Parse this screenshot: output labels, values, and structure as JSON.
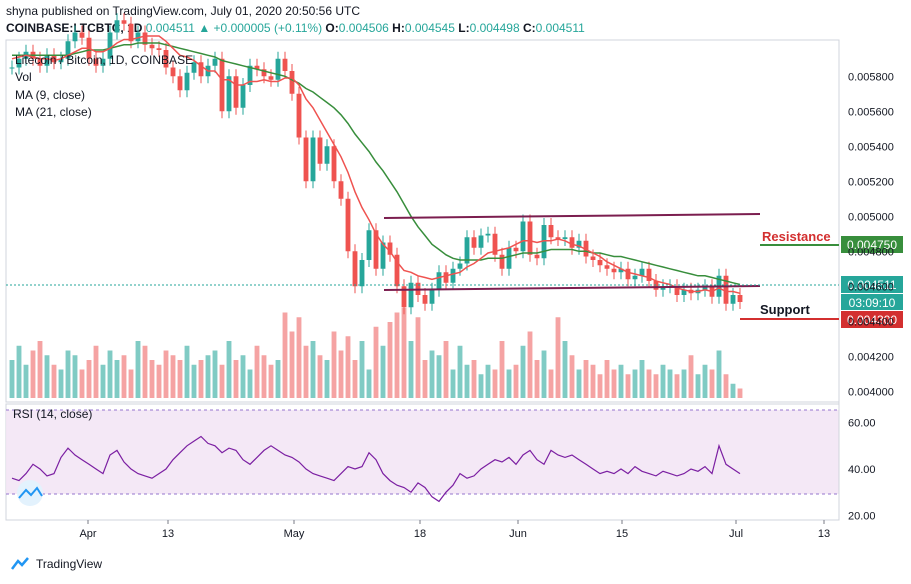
{
  "header": {
    "publisher": "shyna published on TradingView.com, July 01, 2020 20:50:56 UTC",
    "symbol": "COINBASE:LTCBTC, 1D",
    "last": "0.004511",
    "change_arrow": "▲",
    "change": "+0.000005 (+0.11%)",
    "o_label": "O:",
    "o": "0.004506",
    "h_label": "H:",
    "h": "0.004545",
    "l_label": "L:",
    "l": "0.004498",
    "c_label": "C:",
    "c": "0.004511"
  },
  "legend": {
    "title": "Litecoin / Bitcoin, 1D, COINBASE",
    "vol": "Vol",
    "ma9": "MA (9, close)",
    "ma21": "MA (21, close)",
    "rsi": "RSI (14, close)"
  },
  "annotations": {
    "resistance": "Resistance",
    "support": "Support"
  },
  "price_tags": {
    "resistance": "0.004750",
    "current": "0.004511",
    "countdown": "03:09:10",
    "support": "0.004300"
  },
  "footer": {
    "brand": "TradingView"
  },
  "colors": {
    "up": "#26a69a",
    "down": "#ef5350",
    "ma9": "#ef5350",
    "ma21": "#388e3c",
    "channel": "#7b1e4f",
    "resistance": "#388e3c",
    "support": "#d32f2f",
    "rsi": "#7b1fa2"
  },
  "chart_data": {
    "type": "candlestick",
    "price_axis": {
      "ticks": [
        "0.005800",
        "0.005600",
        "0.005400",
        "0.005200",
        "0.005000",
        "0.004800",
        "0.004600",
        "0.004400",
        "0.004200",
        "0.004000"
      ],
      "range": [
        0.00395,
        0.00595
      ]
    },
    "time_axis": {
      "ticks": [
        "Apr",
        "13",
        "May",
        "18",
        "Jun",
        "15",
        "Jul",
        "13"
      ]
    },
    "rsi_axis": {
      "ticks": [
        "60.00",
        "40.00",
        "20.00"
      ],
      "range": [
        18,
        68
      ],
      "band": [
        30,
        70
      ]
    },
    "close": [
      0.00585,
      0.0059,
      0.00594,
      0.0059,
      0.00586,
      0.00592,
      0.00588,
      0.0059,
      0.006,
      0.00605,
      0.00602,
      0.0059,
      0.00586,
      0.0059,
      0.00605,
      0.00612,
      0.0061,
      0.006,
      0.00605,
      0.00598,
      0.00596,
      0.00595,
      0.00585,
      0.0058,
      0.00572,
      0.00582,
      0.00588,
      0.0058,
      0.00586,
      0.0059,
      0.0056,
      0.0058,
      0.00562,
      0.00575,
      0.00586,
      0.00584,
      0.0058,
      0.00578,
      0.0059,
      0.00583,
      0.0057,
      0.00545,
      0.0052,
      0.00545,
      0.0053,
      0.0054,
      0.0052,
      0.0051,
      0.0048,
      0.0046,
      0.00475,
      0.00492,
      0.0047,
      0.00485,
      0.00478,
      0.0046,
      0.00448,
      0.00462,
      0.00455,
      0.0045,
      0.00458,
      0.00468,
      0.00462,
      0.0047,
      0.00473,
      0.00488,
      0.00482,
      0.00489,
      0.0049,
      0.00478,
      0.0047,
      0.00482,
      0.0048,
      0.00497,
      0.00478,
      0.00476,
      0.00495,
      0.00488,
      0.00487,
      0.00488,
      0.00482,
      0.00486,
      0.00477,
      0.00475,
      0.00472,
      0.0047,
      0.00468,
      0.0047,
      0.00464,
      0.00466,
      0.0047,
      0.00463,
      0.00458,
      0.0046,
      0.0046,
      0.00455,
      0.00458,
      0.00456,
      0.00458,
      0.0046,
      0.00454,
      0.00466,
      0.0045,
      0.00455,
      0.00451
    ],
    "ma9": [
      0.0059,
      0.00591,
      0.00592,
      0.00591,
      0.0059,
      0.0059,
      0.00589,
      0.0059,
      0.00592,
      0.00594,
      0.00596,
      0.00596,
      0.00594,
      0.00594,
      0.00596,
      0.00599,
      0.00601,
      0.00601,
      0.00602,
      0.00603,
      0.00603,
      0.00603,
      0.006,
      0.00596,
      0.00592,
      0.00591,
      0.00589,
      0.00586,
      0.00583,
      0.00583,
      0.00578,
      0.00578,
      0.00575,
      0.00575,
      0.00577,
      0.00577,
      0.00578,
      0.00577,
      0.00577,
      0.00579,
      0.00579,
      0.00575,
      0.00567,
      0.00562,
      0.00555,
      0.00548,
      0.00541,
      0.00534,
      0.00525,
      0.00514,
      0.00505,
      0.00498,
      0.0049,
      0.00484,
      0.0048,
      0.00474,
      0.00469,
      0.00468,
      0.00466,
      0.00465,
      0.00464,
      0.00465,
      0.00466,
      0.00467,
      0.00468,
      0.00471,
      0.00473,
      0.00476,
      0.00479,
      0.0048,
      0.00481,
      0.00482,
      0.00484,
      0.00486,
      0.00486,
      0.00485,
      0.00486,
      0.00486,
      0.00487,
      0.00486,
      0.00484,
      0.00483,
      0.00481,
      0.00479,
      0.00477,
      0.00474,
      0.00472,
      0.0047,
      0.00468,
      0.00467,
      0.00466,
      0.00465,
      0.00463,
      0.00462,
      0.00461,
      0.00459,
      0.00458,
      0.00457,
      0.00457,
      0.00458,
      0.00457,
      0.00459,
      0.00457,
      0.00457,
      0.00456
    ],
    "ma21": [
      0.00592,
      0.00592,
      0.00592,
      0.00592,
      0.00592,
      0.00592,
      0.00592,
      0.00592,
      0.00592,
      0.00593,
      0.00594,
      0.00595,
      0.00595,
      0.00595,
      0.00596,
      0.00597,
      0.00598,
      0.00598,
      0.00599,
      0.00599,
      0.00599,
      0.00599,
      0.00598,
      0.00597,
      0.00596,
      0.00595,
      0.00594,
      0.00593,
      0.00592,
      0.00591,
      0.00589,
      0.00588,
      0.00587,
      0.00586,
      0.00585,
      0.00584,
      0.00583,
      0.00582,
      0.00581,
      0.0058,
      0.00578,
      0.00576,
      0.00573,
      0.00571,
      0.00568,
      0.00565,
      0.00562,
      0.00558,
      0.00553,
      0.00547,
      0.00542,
      0.00537,
      0.00531,
      0.00526,
      0.0052,
      0.00514,
      0.00507,
      0.005,
      0.00494,
      0.00489,
      0.00484,
      0.00481,
      0.00478,
      0.00476,
      0.00475,
      0.00475,
      0.00475,
      0.00475,
      0.00476,
      0.00476,
      0.00476,
      0.00477,
      0.00478,
      0.00479,
      0.00479,
      0.00479,
      0.0048,
      0.00481,
      0.00481,
      0.00481,
      0.00481,
      0.0048,
      0.0048,
      0.00479,
      0.00479,
      0.00478,
      0.00477,
      0.00477,
      0.00476,
      0.00475,
      0.00474,
      0.00473,
      0.00472,
      0.00471,
      0.0047,
      0.00469,
      0.00468,
      0.00467,
      0.00466,
      0.00466,
      0.00465,
      0.00464,
      0.00463,
      0.00462,
      0.00461
    ],
    "volume": [
      0.4,
      0.55,
      0.35,
      0.5,
      0.6,
      0.45,
      0.35,
      0.3,
      0.5,
      0.45,
      0.3,
      0.4,
      0.55,
      0.35,
      0.5,
      0.4,
      0.45,
      0.3,
      0.6,
      0.55,
      0.4,
      0.35,
      0.5,
      0.45,
      0.4,
      0.55,
      0.35,
      0.4,
      0.45,
      0.5,
      0.35,
      0.6,
      0.4,
      0.45,
      0.3,
      0.55,
      0.45,
      0.35,
      0.4,
      0.9,
      0.7,
      0.85,
      0.55,
      0.6,
      0.45,
      0.4,
      0.7,
      0.5,
      0.65,
      0.4,
      0.6,
      0.3,
      0.75,
      0.55,
      0.8,
      0.9,
      0.95,
      0.6,
      0.85,
      0.4,
      0.5,
      0.45,
      0.6,
      0.3,
      0.55,
      0.35,
      0.4,
      0.25,
      0.35,
      0.3,
      0.6,
      0.3,
      0.35,
      0.55,
      0.7,
      0.4,
      0.5,
      0.3,
      0.85,
      0.6,
      0.45,
      0.3,
      0.4,
      0.35,
      0.25,
      0.4,
      0.3,
      0.35,
      0.25,
      0.3,
      0.4,
      0.3,
      0.25,
      0.35,
      0.3,
      0.25,
      0.3,
      0.45,
      0.25,
      0.35,
      0.3,
      0.5,
      0.25,
      0.15,
      0.1
    ],
    "rsi": [
      36,
      35,
      38,
      42,
      40,
      37,
      38,
      45,
      49,
      46,
      44,
      42,
      40,
      38,
      46,
      48,
      43,
      40,
      38,
      37,
      36,
      38,
      40,
      44,
      47,
      50,
      52,
      54,
      51,
      50,
      47,
      49,
      48,
      44,
      42,
      45,
      48,
      50,
      48,
      46,
      45,
      43,
      40,
      38,
      37,
      36,
      35,
      38,
      41,
      40,
      41,
      47,
      44,
      38,
      35,
      33,
      32,
      30,
      34,
      32,
      28,
      26,
      30,
      33,
      38,
      36,
      37,
      40,
      42,
      44,
      43,
      45,
      42,
      46,
      48,
      44,
      42,
      48,
      46,
      45,
      46,
      44,
      42,
      40,
      38,
      39,
      38,
      40,
      38,
      41,
      39,
      38,
      37,
      39,
      38,
      37,
      38,
      40,
      39,
      41,
      38,
      50,
      42,
      40,
      38
    ]
  }
}
